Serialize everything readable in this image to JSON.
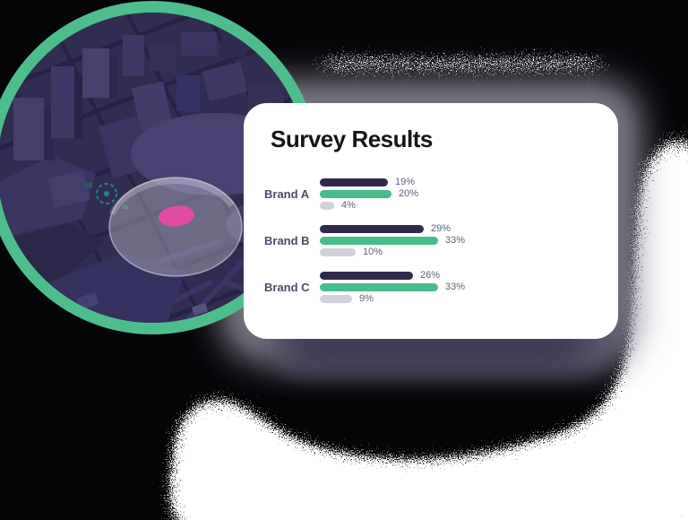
{
  "card": {
    "title": "Survey Results",
    "groups": [
      {
        "label": "Brand A",
        "values": [
          {
            "series": "navy",
            "pct": 19,
            "text": "19%"
          },
          {
            "series": "green",
            "pct": 20,
            "text": "20%"
          },
          {
            "series": "gray",
            "pct": 4,
            "text": "4%"
          }
        ]
      },
      {
        "label": "Brand B",
        "values": [
          {
            "series": "navy",
            "pct": 29,
            "text": "29%"
          },
          {
            "series": "green",
            "pct": 33,
            "text": "33%"
          },
          {
            "series": "gray",
            "pct": 10,
            "text": "10%"
          }
        ]
      },
      {
        "label": "Brand C",
        "values": [
          {
            "series": "navy",
            "pct": 26,
            "text": "26%"
          },
          {
            "series": "green",
            "pct": 33,
            "text": "33%"
          },
          {
            "series": "gray",
            "pct": 9,
            "text": "9%"
          }
        ]
      }
    ]
  },
  "chart_data": {
    "type": "bar",
    "orientation": "horizontal",
    "title": "Survey Results",
    "categories": [
      "Brand A",
      "Brand B",
      "Brand C"
    ],
    "series": [
      {
        "name": "navy",
        "color": "#2f2a4a",
        "values": [
          19,
          29,
          26
        ]
      },
      {
        "name": "green",
        "color": "#45bd8c",
        "values": [
          20,
          33,
          33
        ]
      },
      {
        "name": "gray",
        "color": "#d2d2dc",
        "values": [
          4,
          10,
          9
        ]
      }
    ],
    "value_labels": [
      [
        "19%",
        "20%",
        "4%"
      ],
      [
        "29%",
        "33%",
        "10%"
      ],
      [
        "26%",
        "33%",
        "9%"
      ]
    ],
    "xlim": [
      0,
      40
    ],
    "grid": false,
    "legend": false
  },
  "map": {
    "ring_color": "#4dbd8d",
    "base_color": "#312d52",
    "marker_color": "#e14ba3",
    "scan_disc_color": "rgba(210,208,222,0.38)"
  },
  "colors": {
    "backdrop_black": "#050508",
    "card_bg": "#ffffff",
    "title_text": "#14141a",
    "brand_label": "#474e66",
    "value_label": "#5d6476"
  }
}
